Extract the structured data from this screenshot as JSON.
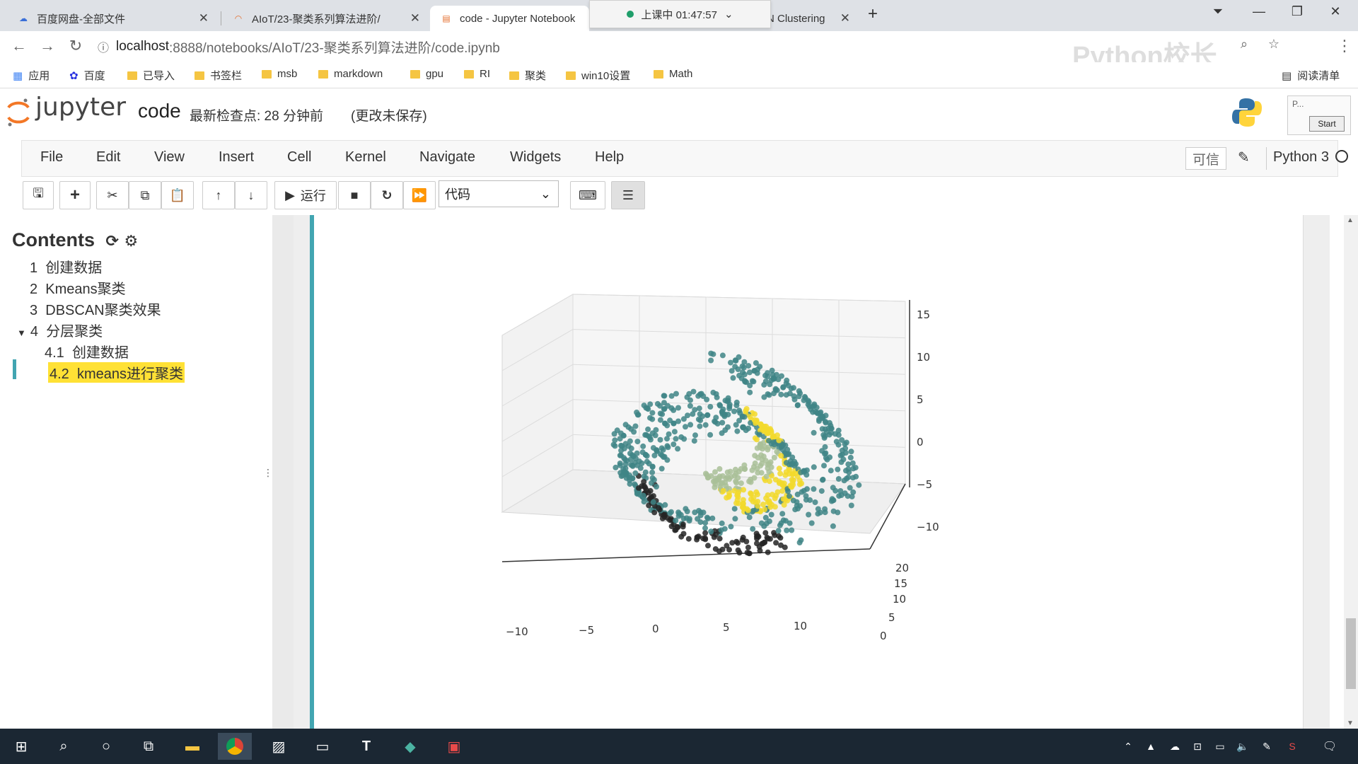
{
  "browser": {
    "tabs": [
      {
        "title": "百度网盘-全部文件",
        "icon": "baidu-pan-icon"
      },
      {
        "title": "AIoT/23-聚类系列算法进阶/",
        "icon": "jupyter-icon"
      },
      {
        "title": "code - Jupyter Notebook",
        "icon": "notebook-icon"
      },
      {
        "title": "N Clustering",
        "icon": "page-icon"
      }
    ],
    "timer": "上课中 01:47:57",
    "url_host": "localhost",
    "url_path": ":8888/notebooks/AIoT/23-聚类系列算法进阶/code.ipynb",
    "watermark": "Python校长",
    "bookmarks": [
      "应用",
      "百度",
      "已导入",
      "书签栏",
      "msb",
      "markdown",
      "gpu",
      "RI",
      "聚类",
      "win10设置",
      "Math"
    ],
    "reading_list": "阅读清单"
  },
  "jupyter": {
    "logo": "jupyter",
    "notebook_name": "code",
    "checkpoint": "最新检查点: 28 分钟前",
    "unsaved": "(更改未保存)",
    "menus": [
      "File",
      "Edit",
      "View",
      "Insert",
      "Cell",
      "Kernel",
      "Navigate",
      "Widgets",
      "Help"
    ],
    "trusted": "可信",
    "kernel": "Python 3",
    "run_label": "运行",
    "cell_type": "代码",
    "zoom_widget": {
      "label": "P...",
      "button": "Start"
    }
  },
  "toc": {
    "title": "Contents",
    "items": [
      {
        "num": "1",
        "label": "创建数据"
      },
      {
        "num": "2",
        "label": "Kmeans聚类"
      },
      {
        "num": "3",
        "label": "DBSCAN聚类效果"
      },
      {
        "num": "4",
        "label": "分层聚类"
      },
      {
        "num": "4.1",
        "label": "创建数据"
      },
      {
        "num": "4.2",
        "label": "kmeans进行聚类"
      }
    ]
  },
  "plot": {
    "x_ticks": [
      "−10",
      "−5",
      "0",
      "5",
      "10"
    ],
    "y_ticks": [
      "0",
      "5",
      "10",
      "15",
      "20"
    ],
    "z_ticks": [
      "15",
      "10",
      "5",
      "0",
      "−5",
      "−10"
    ],
    "colors": {
      "yellow": "#f2d92b",
      "teal": "#3f8586",
      "green": "#a9bf98",
      "dark": "#252525"
    }
  },
  "taskbar": {
    "icons": [
      "windows-start-icon",
      "search-icon",
      "cortana-icon",
      "task-view-icon",
      "file-explorer-icon",
      "chrome-icon",
      "app-icon",
      "terminal-icon",
      "typora-icon",
      "app-icon-2",
      "wps-pdf-icon"
    ]
  }
}
